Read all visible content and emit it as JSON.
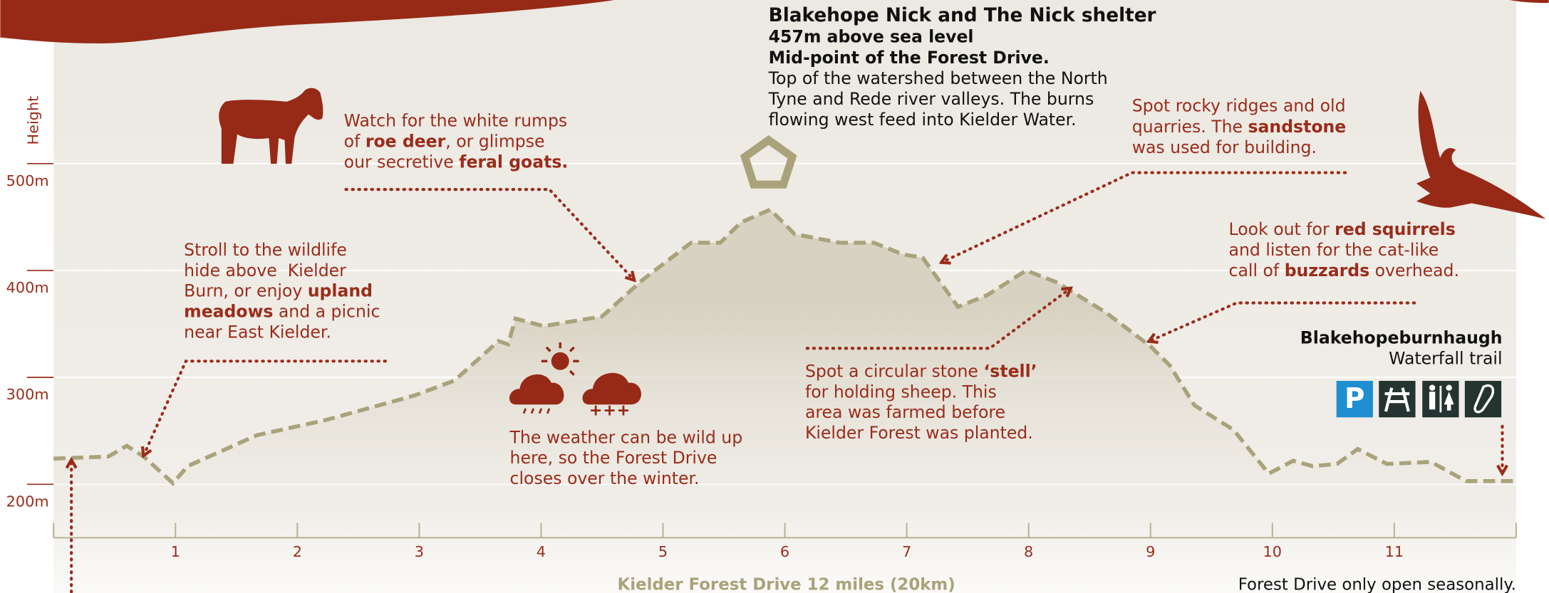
{
  "chart_data": {
    "type": "line",
    "x_label": "Kielder Forest Drive 12 miles (20km)",
    "y_label": "Height",
    "x": [
      0,
      0.45,
      0.6,
      0.74,
      0.98,
      1.1,
      1.67,
      2.23,
      2.96,
      3.29,
      3.65,
      3.73,
      3.79,
      4.02,
      4.5,
      4.83,
      5.23,
      5.47,
      5.64,
      5.88,
      6.08,
      6.45,
      6.73,
      6.97,
      7.13,
      7.42,
      7.66,
      7.98,
      8.23,
      8.63,
      9.0,
      9.16,
      9.36,
      9.68,
      9.97,
      10.17,
      10.33,
      10.53,
      10.7,
      10.94,
      11.3,
      11.59,
      12
    ],
    "series": [
      {
        "color": "#aaa27a",
        "values": [
          224,
          226,
          236,
          226,
          201,
          217,
          246,
          260,
          283,
          297,
          334,
          331,
          355,
          348,
          357,
          391,
          426,
          426,
          445,
          457,
          434,
          426,
          426,
          415,
          412,
          366,
          377,
          400,
          389,
          361,
          329,
          311,
          274,
          251,
          210,
          222,
          217,
          219,
          233,
          219,
          221,
          203,
          203
        ]
      }
    ],
    "xlim": [
      0,
      12
    ],
    "ylim": [
      150,
      650
    ],
    "xticks": [
      1,
      2,
      3,
      4,
      5,
      6,
      7,
      8,
      9,
      10,
      11
    ],
    "yticks": [
      {
        "value": 200,
        "label": "200m"
      },
      {
        "value": 300,
        "label": "300m"
      },
      {
        "value": 400,
        "label": "400m"
      },
      {
        "value": 500,
        "label": "500m"
      }
    ],
    "grid": true
  },
  "annotations": [
    {
      "color": "#9b2c1a",
      "lines": [
        [
          {
            "t": "Stroll to the wildlife"
          }
        ],
        [
          {
            "t": "hide above  Kielder"
          }
        ],
        [
          {
            "t": "Burn, or enjoy "
          },
          {
            "t": "upland",
            "b": true
          }
        ],
        [
          {
            "t": "meadows",
            "b": true
          },
          {
            "t": " and a picnic"
          }
        ],
        [
          {
            "t": "near East Kielder."
          }
        ]
      ]
    },
    {
      "color": "#9b2c1a",
      "lines": [
        [
          {
            "t": "Watch for the white rumps"
          }
        ],
        [
          {
            "t": "of "
          },
          {
            "t": "roe deer",
            "b": true
          },
          {
            "t": ", or glimpse"
          }
        ],
        [
          {
            "t": "our secretive "
          },
          {
            "t": "feral goats.",
            "b": true
          }
        ]
      ]
    },
    {
      "color": "#111111",
      "lines": [
        [
          {
            "t": "Blakehope Nick and The Nick shelter",
            "b": true
          }
        ],
        [
          {
            "t": "457m above sea level",
            "b": true
          }
        ],
        [
          {
            "t": "Mid-point of the Forest Drive.",
            "b": true
          }
        ],
        [
          {
            "t": "Top of the watershed between the North"
          }
        ],
        [
          {
            "t": "Tyne and Rede river valleys. The burns"
          }
        ],
        [
          {
            "t": "flowing west feed into Kielder Water."
          }
        ]
      ]
    },
    {
      "color": "#9b2c1a",
      "lines": [
        [
          {
            "t": "Spot rocky ridges and old"
          }
        ],
        [
          {
            "t": "quarries. The "
          },
          {
            "t": "sandstone",
            "b": true
          }
        ],
        [
          {
            "t": "was used for building."
          }
        ]
      ]
    },
    {
      "color": "#9b2c1a",
      "lines": [
        [
          {
            "t": "Look out for "
          },
          {
            "t": "red squirrels",
            "b": true
          }
        ],
        [
          {
            "t": "and listen for the cat-like"
          }
        ],
        [
          {
            "t": "call of "
          },
          {
            "t": "buzzards",
            "b": true
          },
          {
            "t": " overhead."
          }
        ]
      ]
    },
    {
      "color": "#9b2c1a",
      "lines": [
        [
          {
            "t": "Spot a circular stone "
          },
          {
            "t": "‘stell’",
            "b": true
          }
        ],
        [
          {
            "t": "for holding sheep. This"
          }
        ],
        [
          {
            "t": "area was farmed before"
          }
        ],
        [
          {
            "t": "Kielder Forest was planted."
          }
        ]
      ]
    },
    {
      "color": "#9b2c1a",
      "lines": [
        [
          {
            "t": "The weather can be wild up"
          }
        ],
        [
          {
            "t": "here, so the Forest Drive"
          }
        ],
        [
          {
            "t": "closes over the winter."
          }
        ]
      ]
    },
    {
      "color": "#111111",
      "lines": [
        [
          {
            "t": "Blakehopeburnhaugh",
            "b": true
          }
        ],
        [
          {
            "t": "Waterfall trail"
          }
        ]
      ]
    }
  ],
  "parking_label": "P",
  "footer_note": "Forest Drive only open seasonally."
}
